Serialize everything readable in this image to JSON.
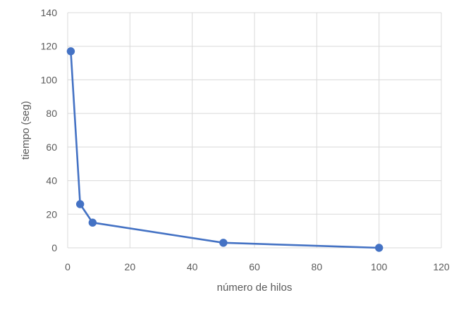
{
  "colors": {
    "series": "#4472C4",
    "grid": "#D9D9D9",
    "text": "#595959",
    "background": "#FFFFFF"
  },
  "chart_data": {
    "type": "line",
    "title": "",
    "xlabel": "número de hilos",
    "ylabel": "tiempo (seg)",
    "xlim": [
      0,
      120
    ],
    "ylim": [
      0,
      140
    ],
    "x_ticks": [
      0,
      20,
      40,
      60,
      80,
      100,
      120
    ],
    "y_ticks": [
      0,
      20,
      40,
      60,
      80,
      100,
      120,
      140
    ],
    "grid": true,
    "legend": "none",
    "series": [
      {
        "markers": true,
        "x": [
          1,
          4,
          8,
          50,
          100
        ],
        "y": [
          117,
          26,
          15,
          3,
          0
        ]
      }
    ]
  }
}
